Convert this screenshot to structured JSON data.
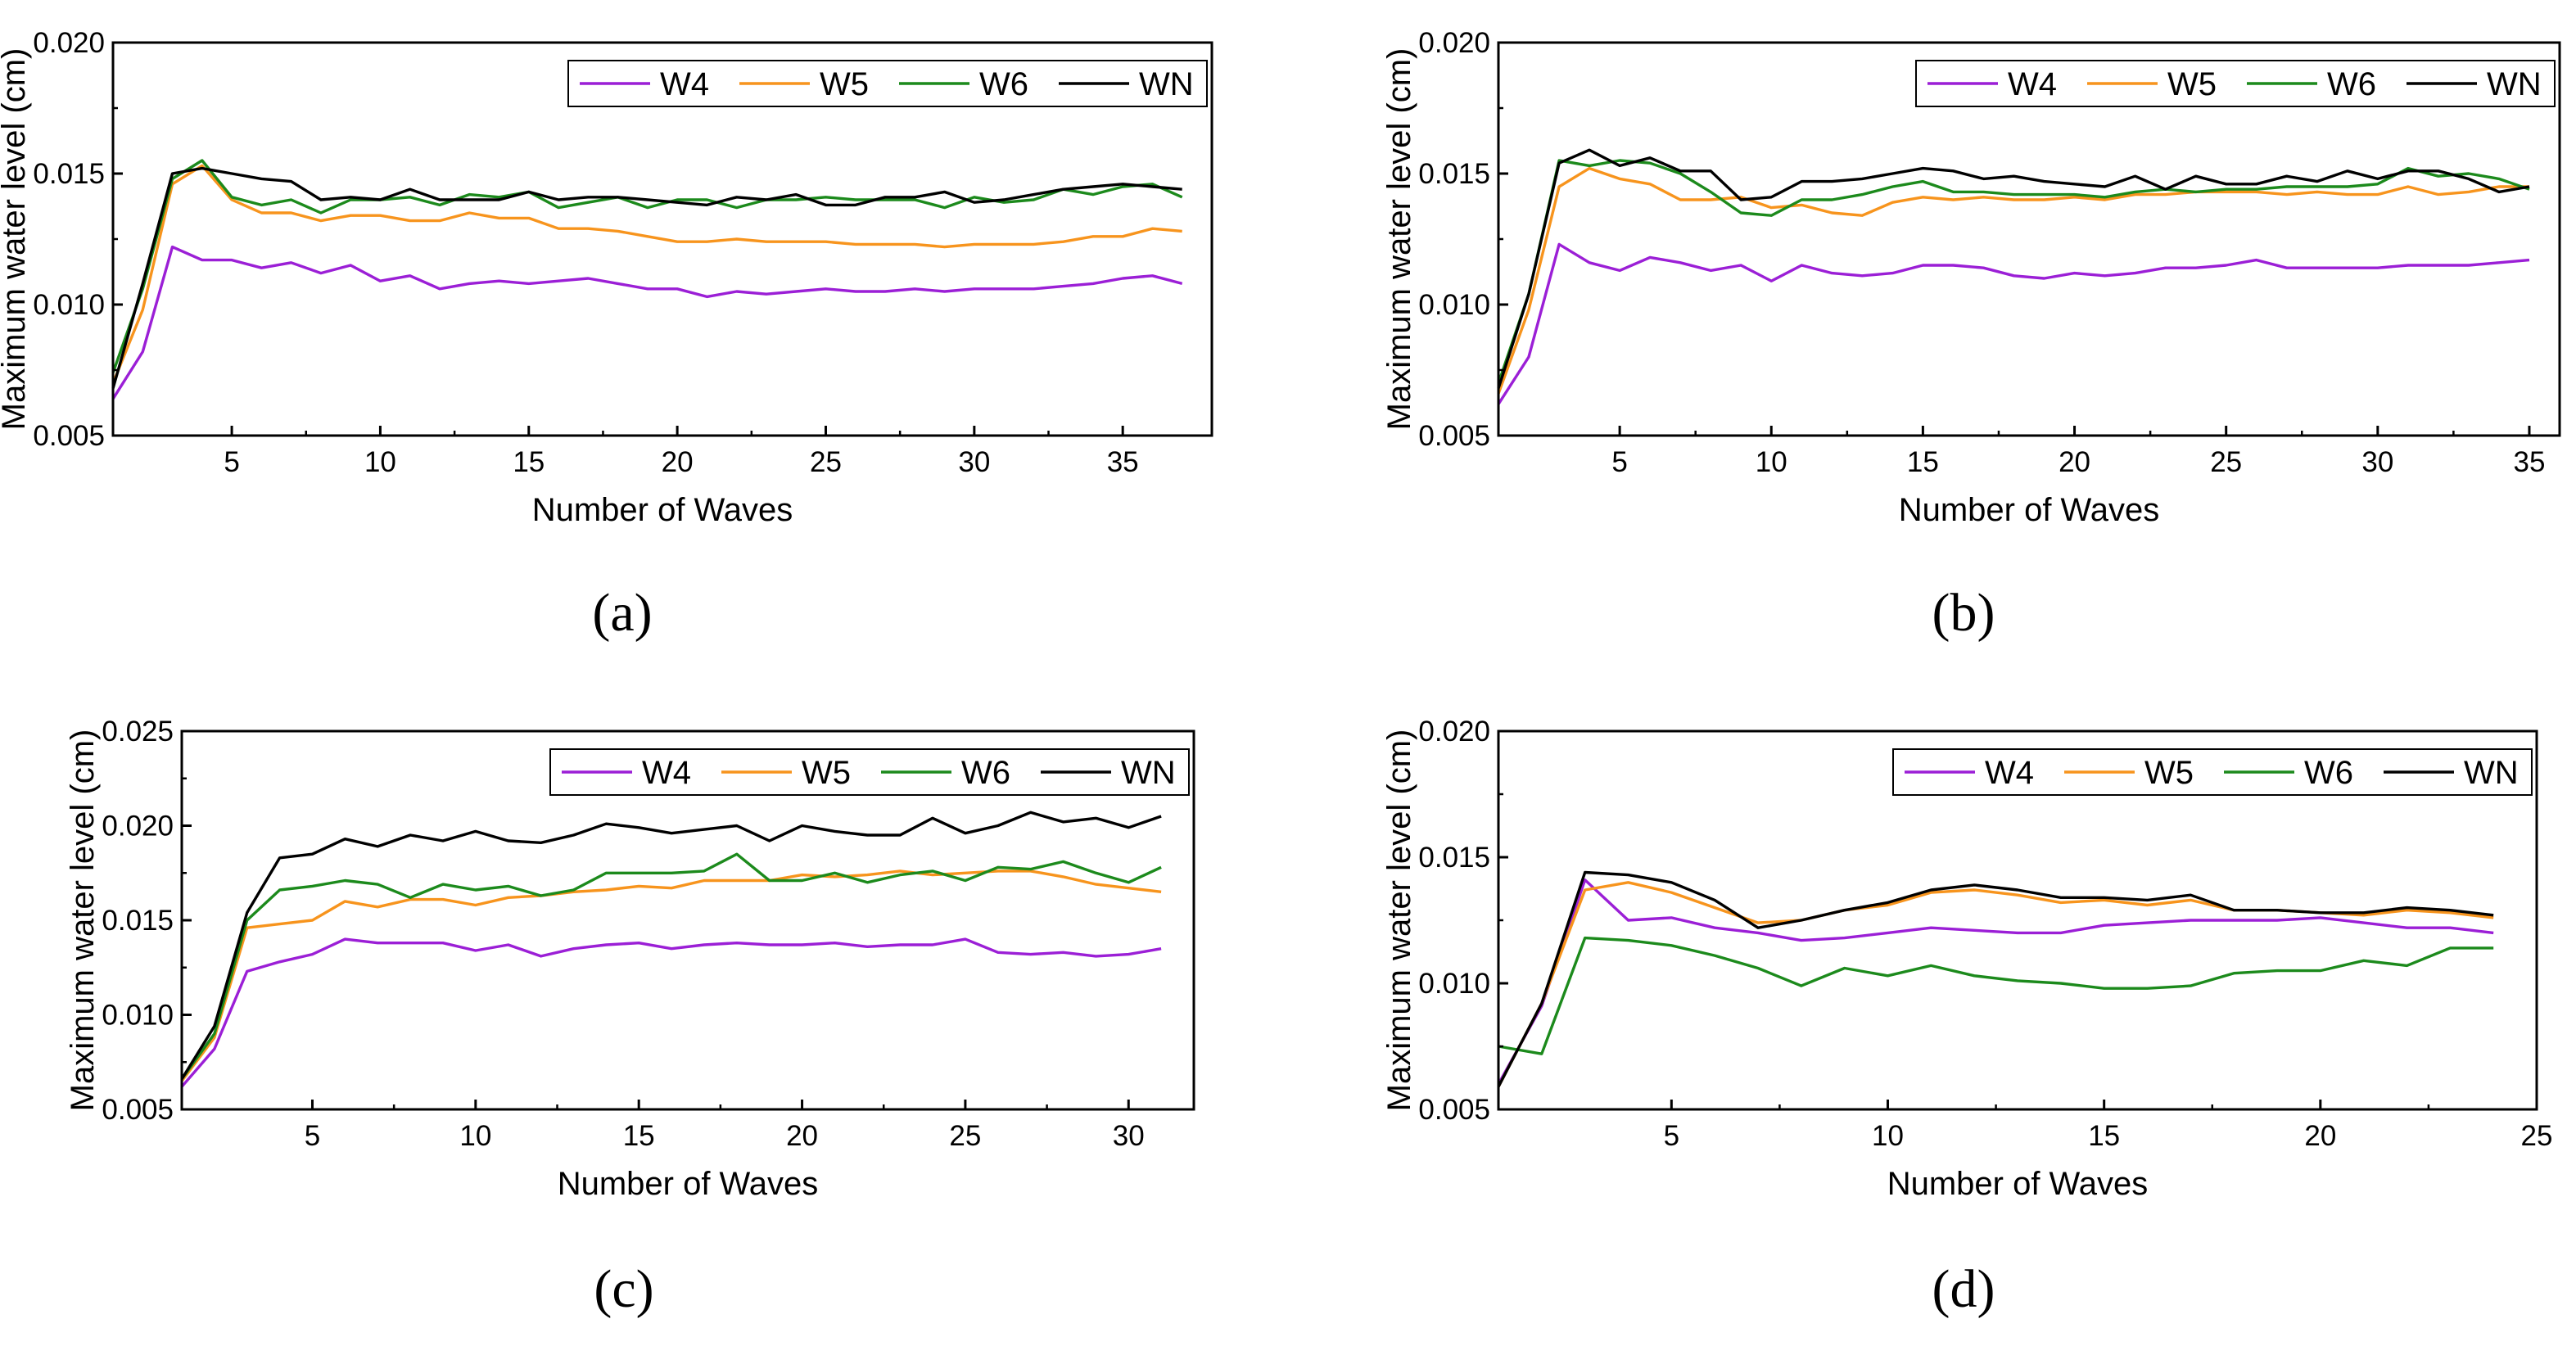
{
  "colors": {
    "W4": "#9b1fd6",
    "W5": "#f7941d",
    "W6": "#1c8a1c",
    "WN": "#000000"
  },
  "chart_data": [
    {
      "type": "line",
      "panel": "a",
      "caption": "(a)",
      "xlabel": "Number of Waves",
      "ylabel": "Maximum water level (cm)",
      "xlim": [
        1,
        38
      ],
      "ylim": [
        0.005,
        0.02
      ],
      "xticks": [
        5,
        10,
        15,
        20,
        25,
        30,
        35
      ],
      "xtick_labels": [
        "5",
        "10",
        "15",
        "20",
        "25",
        "30",
        "35"
      ],
      "yticks": [
        0.005,
        0.01,
        0.015,
        0.02
      ],
      "ytick_labels": [
        "0.005",
        "0.010",
        "0.015",
        "0.020"
      ],
      "legend_position": "top-right",
      "x_start": 1,
      "series": [
        {
          "name": "W4",
          "values": [
            0.0064,
            0.0082,
            0.0122,
            0.0117,
            0.0117,
            0.0114,
            0.0116,
            0.0112,
            0.0115,
            0.0109,
            0.0111,
            0.0106,
            0.0108,
            0.0109,
            0.0108,
            0.0109,
            0.011,
            0.0108,
            0.0106,
            0.0106,
            0.0103,
            0.0105,
            0.0104,
            0.0105,
            0.0106,
            0.0105,
            0.0105,
            0.0106,
            0.0105,
            0.0106,
            0.0106,
            0.0106,
            0.0107,
            0.0108,
            0.011,
            0.0111,
            0.0108
          ]
        },
        {
          "name": "W5",
          "values": [
            0.007,
            0.0098,
            0.0146,
            0.0153,
            0.014,
            0.0135,
            0.0135,
            0.0132,
            0.0134,
            0.0134,
            0.0132,
            0.0132,
            0.0135,
            0.0133,
            0.0133,
            0.0129,
            0.0129,
            0.0128,
            0.0126,
            0.0124,
            0.0124,
            0.0125,
            0.0124,
            0.0124,
            0.0124,
            0.0123,
            0.0123,
            0.0123,
            0.0122,
            0.0123,
            0.0123,
            0.0123,
            0.0124,
            0.0126,
            0.0126,
            0.0129,
            0.0128
          ]
        },
        {
          "name": "W6",
          "values": [
            0.0074,
            0.0106,
            0.0148,
            0.0155,
            0.0141,
            0.0138,
            0.014,
            0.0135,
            0.014,
            0.014,
            0.0141,
            0.0138,
            0.0142,
            0.0141,
            0.0143,
            0.0137,
            0.0139,
            0.0141,
            0.0137,
            0.014,
            0.014,
            0.0137,
            0.014,
            0.014,
            0.0141,
            0.014,
            0.014,
            0.014,
            0.0137,
            0.0141,
            0.0139,
            0.014,
            0.0144,
            0.0142,
            0.0145,
            0.0146,
            0.0141
          ]
        },
        {
          "name": "WN",
          "values": [
            0.0068,
            0.0108,
            0.015,
            0.0152,
            0.015,
            0.0148,
            0.0147,
            0.014,
            0.0141,
            0.014,
            0.0144,
            0.014,
            0.014,
            0.014,
            0.0143,
            0.014,
            0.0141,
            0.0141,
            0.014,
            0.0139,
            0.0138,
            0.0141,
            0.014,
            0.0142,
            0.0138,
            0.0138,
            0.0141,
            0.0141,
            0.0143,
            0.0139,
            0.014,
            0.0142,
            0.0144,
            0.0145,
            0.0146,
            0.0145,
            0.0144
          ]
        }
      ]
    },
    {
      "type": "line",
      "panel": "b",
      "caption": "(b)",
      "xlabel": "Number of Waves",
      "ylabel": "Maximum water level (cm)",
      "xlim": [
        1,
        36
      ],
      "ylim": [
        0.005,
        0.02
      ],
      "xticks": [
        5,
        10,
        15,
        20,
        25,
        30,
        35
      ],
      "xtick_labels": [
        "5",
        "10",
        "15",
        "20",
        "25",
        "30",
        "35"
      ],
      "yticks": [
        0.005,
        0.01,
        0.015,
        0.02
      ],
      "ytick_labels": [
        "0.005",
        "0.010",
        "0.015",
        "0.020"
      ],
      "legend_position": "top-right",
      "x_start": 1,
      "series": [
        {
          "name": "W4",
          "values": [
            0.0062,
            0.008,
            0.0123,
            0.0116,
            0.0113,
            0.0118,
            0.0116,
            0.0113,
            0.0115,
            0.0109,
            0.0115,
            0.0112,
            0.0111,
            0.0112,
            0.0115,
            0.0115,
            0.0114,
            0.0111,
            0.011,
            0.0112,
            0.0111,
            0.0112,
            0.0114,
            0.0114,
            0.0115,
            0.0117,
            0.0114,
            0.0114,
            0.0114,
            0.0114,
            0.0115,
            0.0115,
            0.0115,
            0.0116,
            0.0117
          ]
        },
        {
          "name": "W5",
          "values": [
            0.0066,
            0.0098,
            0.0145,
            0.0152,
            0.0148,
            0.0146,
            0.014,
            0.014,
            0.0141,
            0.0137,
            0.0138,
            0.0135,
            0.0134,
            0.0139,
            0.0141,
            0.014,
            0.0141,
            0.014,
            0.014,
            0.0141,
            0.014,
            0.0142,
            0.0142,
            0.0143,
            0.0143,
            0.0143,
            0.0142,
            0.0143,
            0.0142,
            0.0142,
            0.0145,
            0.0142,
            0.0143,
            0.0145,
            0.0145
          ]
        },
        {
          "name": "W6",
          "values": [
            0.007,
            0.0104,
            0.0155,
            0.0153,
            0.0155,
            0.0154,
            0.015,
            0.0143,
            0.0135,
            0.0134,
            0.014,
            0.014,
            0.0142,
            0.0145,
            0.0147,
            0.0143,
            0.0143,
            0.0142,
            0.0142,
            0.0142,
            0.0141,
            0.0143,
            0.0144,
            0.0143,
            0.0144,
            0.0144,
            0.0145,
            0.0145,
            0.0145,
            0.0146,
            0.0152,
            0.0149,
            0.015,
            0.0148,
            0.0144
          ]
        },
        {
          "name": "WN",
          "values": [
            0.0068,
            0.0104,
            0.0154,
            0.0159,
            0.0153,
            0.0156,
            0.0151,
            0.0151,
            0.014,
            0.0141,
            0.0147,
            0.0147,
            0.0148,
            0.015,
            0.0152,
            0.0151,
            0.0148,
            0.0149,
            0.0147,
            0.0146,
            0.0145,
            0.0149,
            0.0144,
            0.0149,
            0.0146,
            0.0146,
            0.0149,
            0.0147,
            0.0151,
            0.0148,
            0.0151,
            0.0151,
            0.0148,
            0.0143,
            0.0145
          ]
        }
      ]
    },
    {
      "type": "line",
      "panel": "c",
      "caption": "(c)",
      "xlabel": "Number of Waves",
      "ylabel": "Maximum water level (cm)",
      "xlim": [
        1,
        32
      ],
      "ylim": [
        0.005,
        0.025
      ],
      "xticks": [
        5,
        10,
        15,
        20,
        25,
        30
      ],
      "xtick_labels": [
        "5",
        "10",
        "15",
        "20",
        "25",
        "30"
      ],
      "yticks": [
        0.005,
        0.01,
        0.015,
        0.02,
        0.025
      ],
      "ytick_labels": [
        "0.005",
        "0.010",
        "0.015",
        "0.020",
        "0.025"
      ],
      "legend_position": "top-right",
      "x_start": 1,
      "series": [
        {
          "name": "W4",
          "values": [
            0.0062,
            0.0082,
            0.0123,
            0.0128,
            0.0132,
            0.014,
            0.0138,
            0.0138,
            0.0138,
            0.0134,
            0.0137,
            0.0131,
            0.0135,
            0.0137,
            0.0138,
            0.0135,
            0.0137,
            0.0138,
            0.0137,
            0.0137,
            0.0138,
            0.0136,
            0.0137,
            0.0137,
            0.014,
            0.0133,
            0.0132,
            0.0133,
            0.0131,
            0.0132,
            0.0135
          ]
        },
        {
          "name": "W5",
          "values": [
            0.0065,
            0.0088,
            0.0146,
            0.0148,
            0.015,
            0.016,
            0.0157,
            0.0161,
            0.0161,
            0.0158,
            0.0162,
            0.0163,
            0.0165,
            0.0166,
            0.0168,
            0.0167,
            0.0171,
            0.0171,
            0.0171,
            0.0174,
            0.0173,
            0.0174,
            0.0176,
            0.0174,
            0.0175,
            0.0176,
            0.0176,
            0.0173,
            0.0169,
            0.0167,
            0.0165
          ]
        },
        {
          "name": "W6",
          "values": [
            0.0066,
            0.009,
            0.015,
            0.0166,
            0.0168,
            0.0171,
            0.0169,
            0.0162,
            0.0169,
            0.0166,
            0.0168,
            0.0163,
            0.0166,
            0.0175,
            0.0175,
            0.0175,
            0.0176,
            0.0185,
            0.0171,
            0.0171,
            0.0175,
            0.017,
            0.0174,
            0.0176,
            0.0171,
            0.0178,
            0.0177,
            0.0181,
            0.0175,
            0.017,
            0.0178
          ]
        },
        {
          "name": "WN",
          "values": [
            0.0066,
            0.0094,
            0.0154,
            0.0183,
            0.0185,
            0.0193,
            0.0189,
            0.0195,
            0.0192,
            0.0197,
            0.0192,
            0.0191,
            0.0195,
            0.0201,
            0.0199,
            0.0196,
            0.0198,
            0.02,
            0.0192,
            0.02,
            0.0197,
            0.0195,
            0.0195,
            0.0204,
            0.0196,
            0.02,
            0.0207,
            0.0202,
            0.0204,
            0.0199,
            0.0205
          ]
        }
      ]
    },
    {
      "type": "line",
      "panel": "d",
      "caption": "(d)",
      "xlabel": "Number of Waves",
      "ylabel": "Maximum water level (cm)",
      "xlim": [
        1,
        25
      ],
      "ylim": [
        0.005,
        0.02
      ],
      "xticks": [
        5,
        10,
        15,
        20,
        25
      ],
      "xtick_labels": [
        "5",
        "10",
        "15",
        "20",
        "25"
      ],
      "yticks": [
        0.005,
        0.01,
        0.015,
        0.02
      ],
      "ytick_labels": [
        "0.005",
        "0.010",
        "0.015",
        "0.020"
      ],
      "legend_position": "top-right",
      "x_start": 1,
      "series": [
        {
          "name": "W4",
          "values": [
            0.006,
            0.0091,
            0.0141,
            0.0125,
            0.0126,
            0.0122,
            0.012,
            0.0117,
            0.0118,
            0.012,
            0.0122,
            0.0121,
            0.012,
            0.012,
            0.0123,
            0.0124,
            0.0125,
            0.0125,
            0.0125,
            0.0126,
            0.0124,
            0.0122,
            0.0122,
            0.012
          ]
        },
        {
          "name": "W5",
          "values": [
            0.0059,
            0.0092,
            0.0137,
            0.014,
            0.0136,
            0.013,
            0.0124,
            0.0125,
            0.0129,
            0.0131,
            0.0136,
            0.0137,
            0.0135,
            0.0132,
            0.0133,
            0.0131,
            0.0133,
            0.0129,
            0.0129,
            0.0128,
            0.0127,
            0.0129,
            0.0128,
            0.0126
          ]
        },
        {
          "name": "W6",
          "values": [
            0.0075,
            0.0072,
            0.0118,
            0.0117,
            0.0115,
            0.0111,
            0.0106,
            0.0099,
            0.0106,
            0.0103,
            0.0107,
            0.0103,
            0.0101,
            0.01,
            0.0098,
            0.0098,
            0.0099,
            0.0104,
            0.0105,
            0.0105,
            0.0109,
            0.0107,
            0.0114,
            0.0114
          ]
        },
        {
          "name": "WN",
          "values": [
            0.0059,
            0.0092,
            0.0144,
            0.0143,
            0.014,
            0.0133,
            0.0122,
            0.0125,
            0.0129,
            0.0132,
            0.0137,
            0.0139,
            0.0137,
            0.0134,
            0.0134,
            0.0133,
            0.0135,
            0.0129,
            0.0129,
            0.0128,
            0.0128,
            0.013,
            0.0129,
            0.0127
          ]
        }
      ]
    }
  ]
}
